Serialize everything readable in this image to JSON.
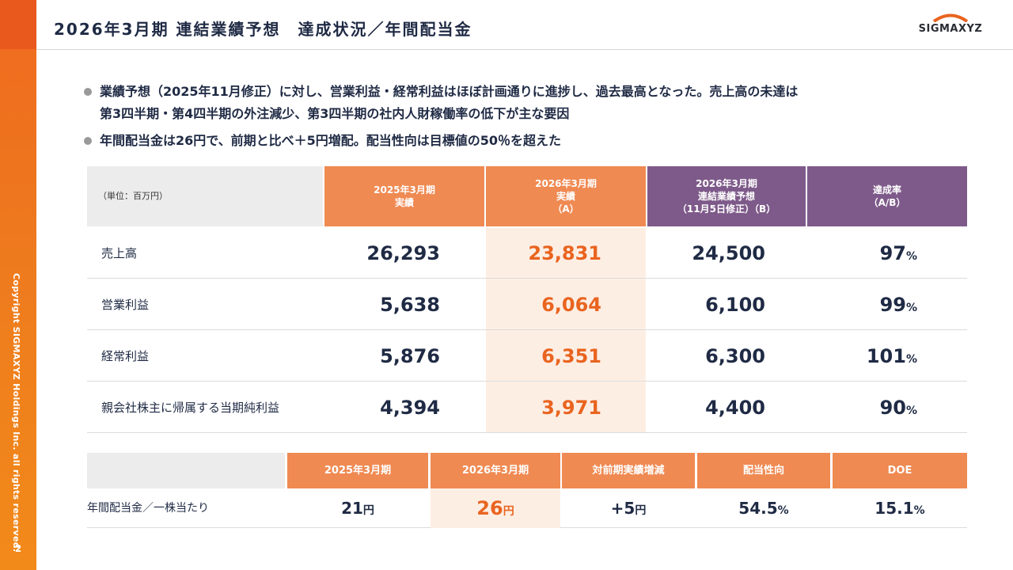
{
  "header": {
    "title": "2026年3月期 連結業績予想　達成状況／年間配当金",
    "logo_text": "SIGMAXYZ"
  },
  "sidebar": {
    "copyright": "Copyright SIGMAXYZ Holdings Inc. all rights reserved.",
    "page_number": "2"
  },
  "bullets": [
    {
      "line1": "業績予想（2025年11月修正）に対し、営業利益・経常利益はほぼ計画通りに進捗し、過去最高となった。売上高の未達は",
      "line2": "第3四半期・第4四半期の外注減少、第3四半期の社内人財稼働率の低下が主な要因"
    },
    {
      "line1": "年間配当金は26円で、前期と比べ＋5円増配。配当性向は目標値の50％を超えた"
    }
  ],
  "results_table": {
    "unit_label": "（単位：百万円）",
    "headers": [
      {
        "line1": "2025年3月期",
        "line2": "実績",
        "line3": ""
      },
      {
        "line1": "2026年3月期",
        "line2": "実績",
        "line3": "（A）"
      },
      {
        "line1": "2026年3月期",
        "line2": "連結業績予想",
        "line3": "（11月5日修正）（B）"
      },
      {
        "line1": "達成率",
        "line2": "（A/B）",
        "line3": ""
      }
    ],
    "rows": [
      {
        "label": "売上高",
        "fy2025": "26,293",
        "fy2026": "23,831",
        "forecast": "24,500",
        "rate": "97",
        "pct": "%"
      },
      {
        "label": "営業利益",
        "fy2025": "5,638",
        "fy2026": "6,064",
        "forecast": "6,100",
        "rate": "99",
        "pct": "%"
      },
      {
        "label": "経常利益",
        "fy2025": "5,876",
        "fy2026": "6,351",
        "forecast": "6,300",
        "rate": "101",
        "pct": "%"
      },
      {
        "label": "親会社株主に帰属する当期純利益",
        "fy2025": "4,394",
        "fy2026": "3,971",
        "forecast": "4,400",
        "rate": "90",
        "pct": "%"
      }
    ]
  },
  "dividend_table": {
    "headers": [
      "2025年3月期",
      "2026年3月期",
      "対前期実績増減",
      "配当性向",
      "DOE"
    ],
    "row_label": "年間配当金／一株当たり",
    "values": [
      {
        "value": "21",
        "unit": "円"
      },
      {
        "value": "26",
        "unit": "円"
      },
      {
        "value": "+5",
        "unit": "円"
      },
      {
        "value": "54.5",
        "unit": "%"
      },
      {
        "value": "15.1",
        "unit": "%"
      }
    ]
  },
  "colors": {
    "accent_orange": "#ef8a52",
    "accent_purple": "#7e5a8a",
    "highlight_bg": "#fdeee4",
    "highlight_text": "#e9641f",
    "rail_orange": "#ee7a1e"
  }
}
